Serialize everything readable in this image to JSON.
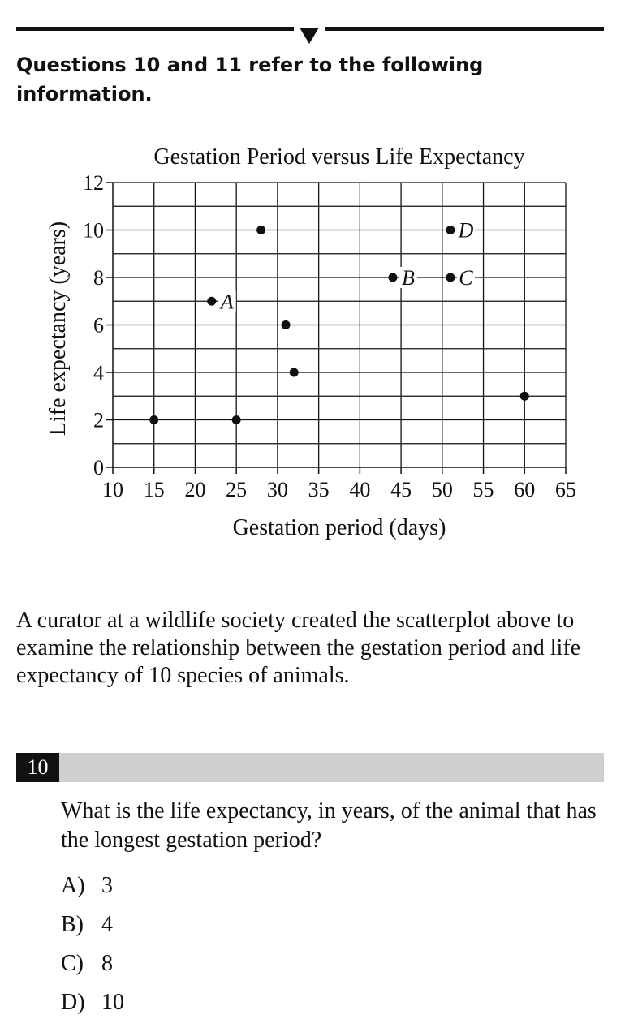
{
  "intro": "Questions 10 and 11 refer to the following information.",
  "chart_data": {
    "type": "scatter",
    "title": "Gestation Period versus Life Expectancy",
    "xlabel": "Gestation period (days)",
    "ylabel": "Life expectancy (years)",
    "xlim": [
      10,
      65
    ],
    "ylim": [
      0,
      12
    ],
    "x_ticks": [
      10,
      15,
      20,
      25,
      30,
      35,
      40,
      45,
      50,
      55,
      60,
      65
    ],
    "y_ticks": [
      0,
      2,
      4,
      6,
      8,
      10,
      12
    ],
    "grid": true,
    "points": [
      {
        "x": 15,
        "y": 2,
        "label": ""
      },
      {
        "x": 22,
        "y": 7,
        "label": "A"
      },
      {
        "x": 25,
        "y": 2,
        "label": ""
      },
      {
        "x": 28,
        "y": 10,
        "label": ""
      },
      {
        "x": 31,
        "y": 6,
        "label": ""
      },
      {
        "x": 32,
        "y": 4,
        "label": ""
      },
      {
        "x": 44,
        "y": 8,
        "label": "B"
      },
      {
        "x": 51,
        "y": 8,
        "label": "C"
      },
      {
        "x": 51,
        "y": 10,
        "label": "D"
      },
      {
        "x": 60,
        "y": 3,
        "label": ""
      }
    ]
  },
  "passage": "A curator at a wildlife society created the scatterplot above to examine the relationship between the gestation period and life expectancy of 10 species of animals.",
  "question": {
    "number": "10",
    "text": "What is the life expectancy, in years, of the animal that has the longest gestation period?",
    "choices": [
      {
        "letter": "A)",
        "value": "3"
      },
      {
        "letter": "B)",
        "value": "4"
      },
      {
        "letter": "C)",
        "value": "8"
      },
      {
        "letter": "D)",
        "value": "10"
      }
    ]
  }
}
